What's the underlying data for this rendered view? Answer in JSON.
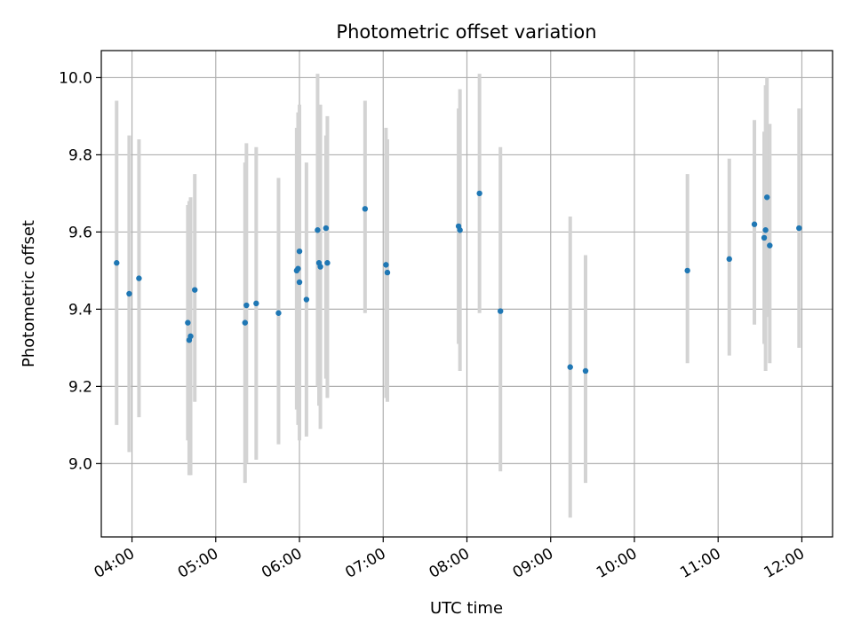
{
  "chart_data": {
    "type": "scatter",
    "title": "Photometric offset variation",
    "xlabel": "UTC time",
    "ylabel": "Photometric offset",
    "grid": true,
    "x_unit": "UTC time (HH:MM)",
    "xlim": [
      "03:38",
      "12:22"
    ],
    "ylim": [
      8.81,
      10.07
    ],
    "xticks": [
      "04:00",
      "05:00",
      "06:00",
      "07:00",
      "08:00",
      "09:00",
      "10:00",
      "11:00",
      "12:00"
    ],
    "yticks": [
      9.0,
      9.2,
      9.4,
      9.6,
      9.8,
      10.0
    ],
    "ytick_labels": [
      "9.0",
      "9.2",
      "9.4",
      "9.6",
      "9.8",
      "10.0"
    ],
    "colors": {
      "point": "#1f77b4",
      "errorbar": "#d3d3d3",
      "grid": "#b0b0b0"
    },
    "points": [
      {
        "x": "03:49",
        "y": 9.52,
        "ylow": 9.1,
        "yhigh": 9.94
      },
      {
        "x": "03:58",
        "y": 9.44,
        "ylow": 9.03,
        "yhigh": 9.85
      },
      {
        "x": "04:05",
        "y": 9.48,
        "ylow": 9.12,
        "yhigh": 9.84
      },
      {
        "x": "04:40",
        "y": 9.365,
        "ylow": 9.06,
        "yhigh": 9.67
      },
      {
        "x": "04:41",
        "y": 9.32,
        "ylow": 8.97,
        "yhigh": 9.68
      },
      {
        "x": "04:42",
        "y": 9.33,
        "ylow": 8.97,
        "yhigh": 9.69
      },
      {
        "x": "04:45",
        "y": 9.45,
        "ylow": 9.16,
        "yhigh": 9.75
      },
      {
        "x": "05:21",
        "y": 9.365,
        "ylow": 8.95,
        "yhigh": 9.78
      },
      {
        "x": "05:22",
        "y": 9.41,
        "ylow": 9.0,
        "yhigh": 9.83
      },
      {
        "x": "05:29",
        "y": 9.415,
        "ylow": 9.01,
        "yhigh": 9.82
      },
      {
        "x": "05:45",
        "y": 9.39,
        "ylow": 9.05,
        "yhigh": 9.74
      },
      {
        "x": "05:58",
        "y": 9.5,
        "ylow": 9.14,
        "yhigh": 9.87
      },
      {
        "x": "05:59",
        "y": 9.505,
        "ylow": 9.1,
        "yhigh": 9.91
      },
      {
        "x": "06:00",
        "y": 9.55,
        "ylow": 9.17,
        "yhigh": 9.93
      },
      {
        "x": "06:00",
        "y": 9.47,
        "ylow": 9.06,
        "yhigh": 9.89
      },
      {
        "x": "06:05",
        "y": 9.425,
        "ylow": 9.07,
        "yhigh": 9.78
      },
      {
        "x": "06:13",
        "y": 9.605,
        "ylow": 9.2,
        "yhigh": 10.01
      },
      {
        "x": "06:14",
        "y": 9.52,
        "ylow": 9.15,
        "yhigh": 9.89
      },
      {
        "x": "06:15",
        "y": 9.51,
        "ylow": 9.09,
        "yhigh": 9.93
      },
      {
        "x": "06:19",
        "y": 9.61,
        "ylow": 9.22,
        "yhigh": 9.85
      },
      {
        "x": "06:20",
        "y": 9.52,
        "ylow": 9.17,
        "yhigh": 9.9
      },
      {
        "x": "06:47",
        "y": 9.66,
        "ylow": 9.39,
        "yhigh": 9.94
      },
      {
        "x": "07:02",
        "y": 9.515,
        "ylow": 9.17,
        "yhigh": 9.87
      },
      {
        "x": "07:03",
        "y": 9.495,
        "ylow": 9.16,
        "yhigh": 9.84
      },
      {
        "x": "07:54",
        "y": 9.615,
        "ylow": 9.31,
        "yhigh": 9.92
      },
      {
        "x": "07:55",
        "y": 9.605,
        "ylow": 9.24,
        "yhigh": 9.97
      },
      {
        "x": "08:09",
        "y": 9.7,
        "ylow": 9.39,
        "yhigh": 10.01
      },
      {
        "x": "08:24",
        "y": 9.395,
        "ylow": 8.98,
        "yhigh": 9.82
      },
      {
        "x": "09:14",
        "y": 9.25,
        "ylow": 8.86,
        "yhigh": 9.64
      },
      {
        "x": "09:25",
        "y": 9.24,
        "ylow": 8.95,
        "yhigh": 9.54
      },
      {
        "x": "10:38",
        "y": 9.5,
        "ylow": 9.26,
        "yhigh": 9.75
      },
      {
        "x": "11:08",
        "y": 9.53,
        "ylow": 9.28,
        "yhigh": 9.79
      },
      {
        "x": "11:26",
        "y": 9.62,
        "ylow": 9.36,
        "yhigh": 9.89
      },
      {
        "x": "11:33",
        "y": 9.585,
        "ylow": 9.31,
        "yhigh": 9.86
      },
      {
        "x": "11:34",
        "y": 9.605,
        "ylow": 9.24,
        "yhigh": 9.98
      },
      {
        "x": "11:35",
        "y": 9.69,
        "ylow": 9.38,
        "yhigh": 10.0
      },
      {
        "x": "11:37",
        "y": 9.565,
        "ylow": 9.26,
        "yhigh": 9.88
      },
      {
        "x": "11:58",
        "y": 9.61,
        "ylow": 9.3,
        "yhigh": 9.92
      }
    ]
  }
}
